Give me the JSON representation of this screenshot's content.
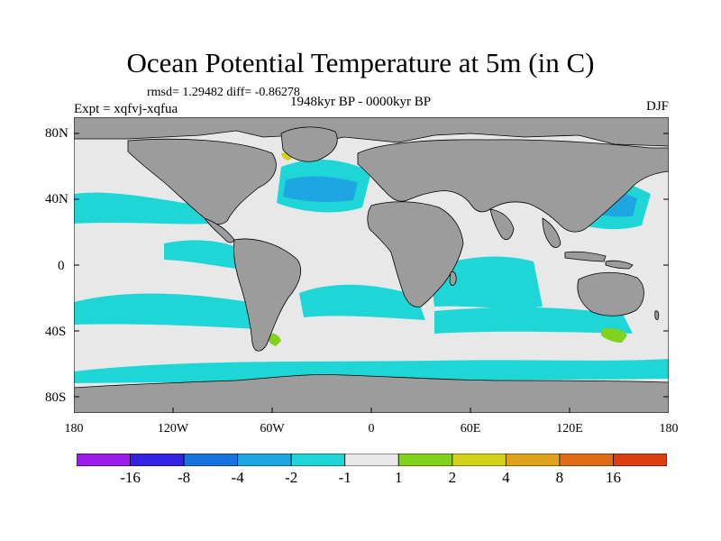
{
  "title": "Ocean Potential Temperature at 5m (in C)",
  "stats": "rmsd= 1.29482 diff= -0.86278",
  "experiment": "Expt = xqfvj-xqfua",
  "period": "1948kyr BP - 0000kyr BP",
  "season": "DJF",
  "lat_labels": [
    "80N",
    "40N",
    "0",
    "40S",
    "80S"
  ],
  "lon_labels": [
    "180",
    "120W",
    "60W",
    "0",
    "60E",
    "120E",
    "180"
  ],
  "colorbar": {
    "colors": [
      "#9b1de8",
      "#3322e2",
      "#1673df",
      "#1ea6e2",
      "#1ed6d6",
      "#e8e8e8",
      "#80d21c",
      "#d2d21c",
      "#e0a21c",
      "#e06c18",
      "#e03c14"
    ],
    "labels": [
      "-16",
      "-8",
      "-4",
      "-2",
      "-1",
      "1",
      "2",
      "4",
      "8",
      "16"
    ]
  },
  "map_colors": {
    "land": "#9c9c9c",
    "ocean_neutral": "#e8e8e8",
    "cool_light": "#1ed6d6",
    "cool_mid": "#1ea6e2",
    "cool_strong": "#1673df",
    "warm_light": "#80d21c",
    "warm_mid": "#d2d21c"
  }
}
